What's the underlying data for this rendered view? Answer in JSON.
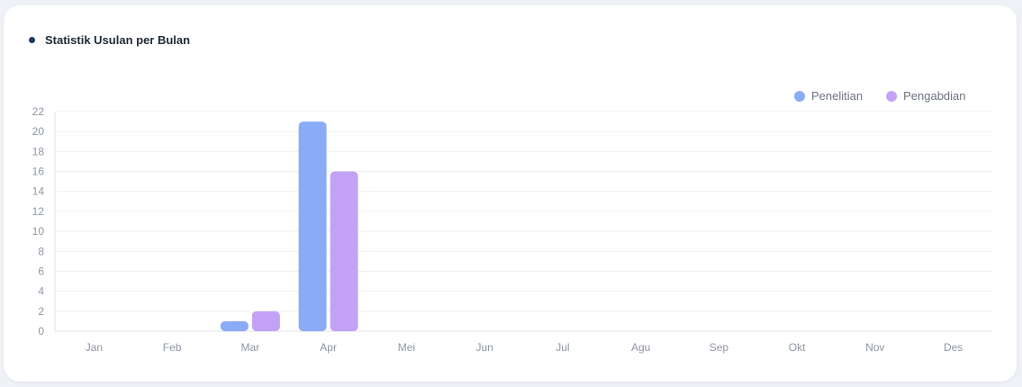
{
  "title": "Statistik Usulan per Bulan",
  "colors": {
    "title_dot": "#213a5c",
    "penelitian": "#8aabf5",
    "pengabdian": "#c3a2f5"
  },
  "chart_data": {
    "type": "bar",
    "categories": [
      "Jan",
      "Feb",
      "Mar",
      "Apr",
      "Mei",
      "Jun",
      "Jul",
      "Agu",
      "Sep",
      "Okt",
      "Nov",
      "Des"
    ],
    "series": [
      {
        "name": "Penelitian",
        "values": [
          0,
          0,
          1,
          21,
          0,
          0,
          0,
          0,
          0,
          0,
          0,
          0
        ],
        "color": "#8aabf5"
      },
      {
        "name": "Pengabdian",
        "values": [
          0,
          0,
          2,
          16,
          0,
          0,
          0,
          0,
          0,
          0,
          0,
          0
        ],
        "color": "#c3a2f5"
      }
    ],
    "yticks": [
      0,
      2,
      4,
      6,
      8,
      10,
      12,
      14,
      16,
      18,
      20,
      22
    ],
    "ylim": [
      0,
      22
    ],
    "grid": true,
    "legend": "top-right"
  }
}
